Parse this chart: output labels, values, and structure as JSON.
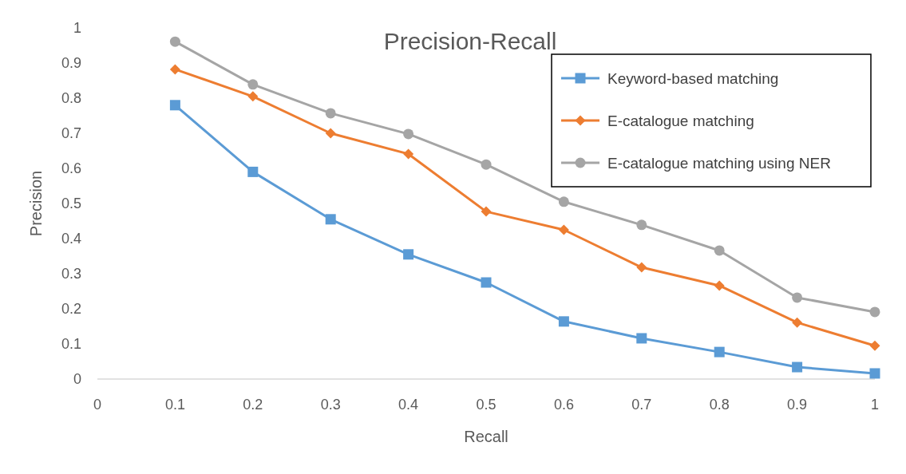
{
  "chart_data": {
    "type": "line",
    "title": "Precision-Recall",
    "xlabel": "Recall",
    "ylabel": "Precision",
    "x": [
      0.1,
      0.2,
      0.3,
      0.4,
      0.5,
      0.6,
      0.7,
      0.8,
      0.9,
      1
    ],
    "xlim": [
      0,
      1
    ],
    "xticks": [
      0,
      0.1,
      0.2,
      0.3,
      0.4,
      0.5,
      0.6,
      0.7,
      0.8,
      0.9,
      1
    ],
    "ylim": [
      0,
      1
    ],
    "yticks": [
      0,
      0.1,
      0.2,
      0.3,
      0.4,
      0.5,
      0.6,
      0.7,
      0.8,
      0.9,
      1
    ],
    "grid": false,
    "legend": "top right",
    "line_style": "solid",
    "series": [
      {
        "name": "Keyword-based matching",
        "color": "#5b9bd5",
        "marker": "square",
        "values": [
          0.78,
          0.59,
          0.455,
          0.355,
          0.275,
          0.164,
          0.116,
          0.077,
          0.034,
          0.016
        ]
      },
      {
        "name": "E-catalogue matching",
        "color": "#ed7d31",
        "marker": "diamond",
        "values": [
          0.882,
          0.805,
          0.7,
          0.641,
          0.477,
          0.425,
          0.318,
          0.266,
          0.161,
          0.095
        ]
      },
      {
        "name": "E-catalogue matching using NER",
        "color": "#a5a5a5",
        "marker": "circle",
        "values": [
          0.961,
          0.839,
          0.757,
          0.698,
          0.611,
          0.505,
          0.439,
          0.366,
          0.232,
          0.191
        ]
      }
    ]
  }
}
